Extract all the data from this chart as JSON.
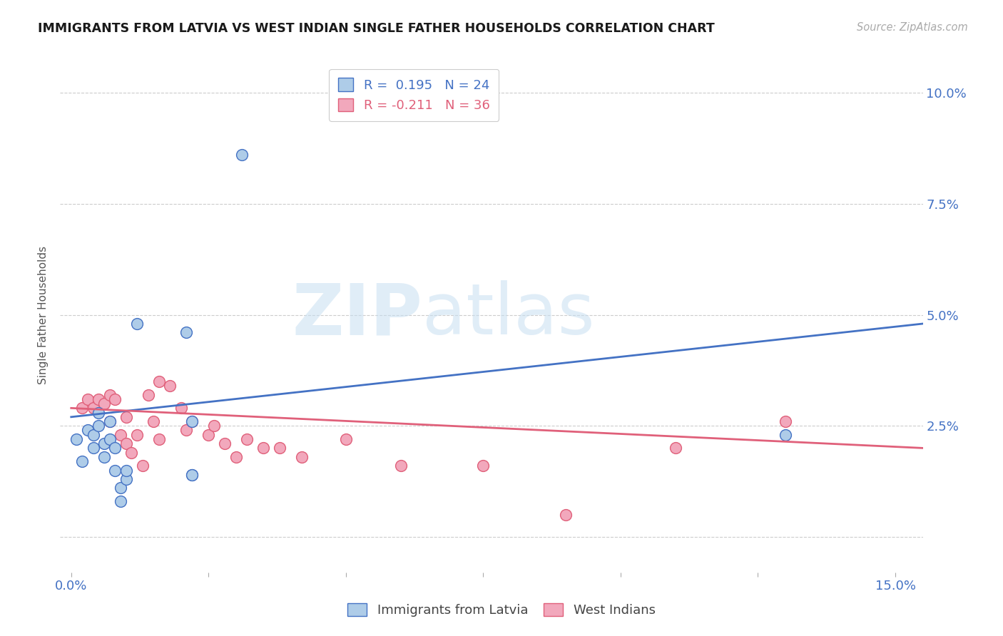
{
  "title": "IMMIGRANTS FROM LATVIA VS WEST INDIAN SINGLE FATHER HOUSEHOLDS CORRELATION CHART",
  "source": "Source: ZipAtlas.com",
  "ylabel": "Single Father Households",
  "yticks": [
    0.0,
    0.025,
    0.05,
    0.075,
    0.1
  ],
  "ytick_labels_right": [
    "",
    "2.5%",
    "5.0%",
    "7.5%",
    "10.0%"
  ],
  "xticks": [
    0.0,
    0.025,
    0.05,
    0.075,
    0.1,
    0.125,
    0.15
  ],
  "xlim": [
    -0.002,
    0.155
  ],
  "ylim": [
    -0.008,
    0.108
  ],
  "series1_label": "Immigrants from Latvia",
  "series2_label": "West Indians",
  "R1": 0.195,
  "N1": 24,
  "R2": -0.211,
  "N2": 36,
  "color1": "#aecce8",
  "color2": "#f2a8bc",
  "line_color1": "#4472c4",
  "line_color2": "#e0607a",
  "watermark_zip": "ZIP",
  "watermark_atlas": "atlas",
  "background_color": "#ffffff",
  "scatter1_x": [
    0.001,
    0.002,
    0.003,
    0.004,
    0.004,
    0.005,
    0.005,
    0.006,
    0.006,
    0.007,
    0.007,
    0.008,
    0.008,
    0.009,
    0.009,
    0.01,
    0.01,
    0.012,
    0.021,
    0.022,
    0.022,
    0.022,
    0.13,
    0.031
  ],
  "scatter1_y": [
    0.022,
    0.017,
    0.024,
    0.02,
    0.023,
    0.028,
    0.025,
    0.021,
    0.018,
    0.022,
    0.026,
    0.02,
    0.015,
    0.011,
    0.008,
    0.013,
    0.015,
    0.048,
    0.046,
    0.026,
    0.014,
    0.014,
    0.023,
    0.086
  ],
  "scatter2_x": [
    0.002,
    0.003,
    0.004,
    0.005,
    0.006,
    0.007,
    0.007,
    0.008,
    0.009,
    0.01,
    0.01,
    0.011,
    0.012,
    0.013,
    0.014,
    0.015,
    0.016,
    0.016,
    0.018,
    0.02,
    0.021,
    0.022,
    0.025,
    0.026,
    0.028,
    0.03,
    0.032,
    0.035,
    0.038,
    0.042,
    0.05,
    0.06,
    0.075,
    0.09,
    0.11,
    0.13
  ],
  "scatter2_y": [
    0.029,
    0.031,
    0.029,
    0.031,
    0.03,
    0.032,
    0.026,
    0.031,
    0.023,
    0.027,
    0.021,
    0.019,
    0.023,
    0.016,
    0.032,
    0.026,
    0.022,
    0.035,
    0.034,
    0.029,
    0.024,
    0.026,
    0.023,
    0.025,
    0.021,
    0.018,
    0.022,
    0.02,
    0.02,
    0.018,
    0.022,
    0.016,
    0.016,
    0.005,
    0.02,
    0.026
  ],
  "trendline1_x": [
    0.0,
    0.155
  ],
  "trendline1_y": [
    0.027,
    0.048
  ],
  "trendline2_x": [
    0.0,
    0.155
  ],
  "trendline2_y": [
    0.029,
    0.02
  ]
}
